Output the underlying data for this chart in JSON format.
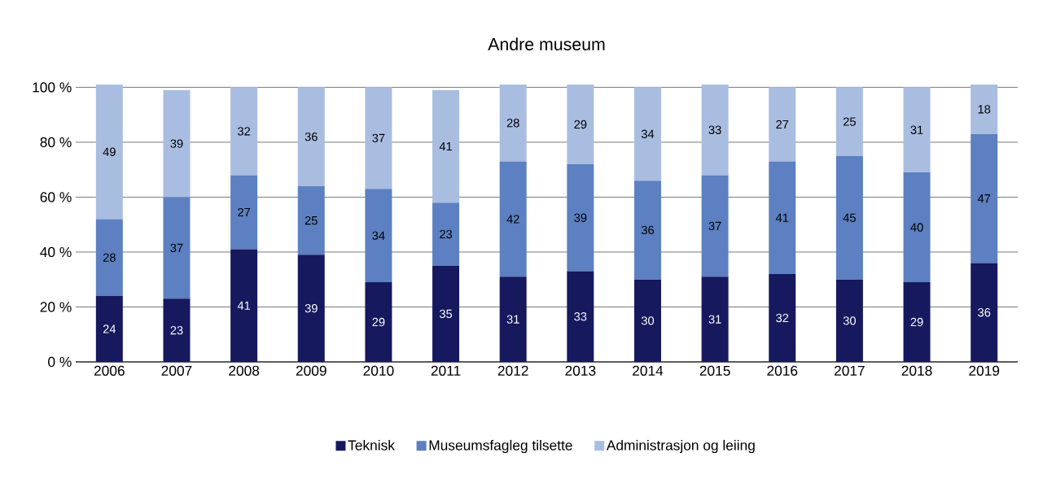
{
  "chart_data": {
    "type": "bar",
    "stacked": true,
    "title": "Andre museum",
    "categories": [
      "2006",
      "2007",
      "2008",
      "2009",
      "2010",
      "2011",
      "2012",
      "2013",
      "2014",
      "2015",
      "2016",
      "2017",
      "2018",
      "2019"
    ],
    "series": [
      {
        "name": "Teknisk",
        "color": "#16195e",
        "values": [
          24,
          23,
          41,
          39,
          29,
          35,
          31,
          33,
          30,
          31,
          32,
          30,
          29,
          36
        ]
      },
      {
        "name": "Museumsfagleg tilsette",
        "color": "#5c80c1",
        "values": [
          28,
          37,
          27,
          25,
          34,
          23,
          42,
          39,
          36,
          37,
          41,
          45,
          40,
          47
        ]
      },
      {
        "name": "Administrasjon og leiing",
        "color": "#a9bde1",
        "values": [
          49,
          39,
          32,
          36,
          37,
          41,
          28,
          29,
          34,
          33,
          27,
          25,
          31,
          18
        ]
      }
    ],
    "ylim": [
      0,
      101
    ],
    "yticks": [
      {
        "value": 0,
        "label": "0 %"
      },
      {
        "value": 20,
        "label": "20 %"
      },
      {
        "value": 40,
        "label": "40 %"
      },
      {
        "value": 60,
        "label": "60 %"
      },
      {
        "value": 80,
        "label": "80 %"
      },
      {
        "value": 100,
        "label": "100 %"
      }
    ],
    "grid": "y",
    "legend": "bottom",
    "data_labels": true
  }
}
